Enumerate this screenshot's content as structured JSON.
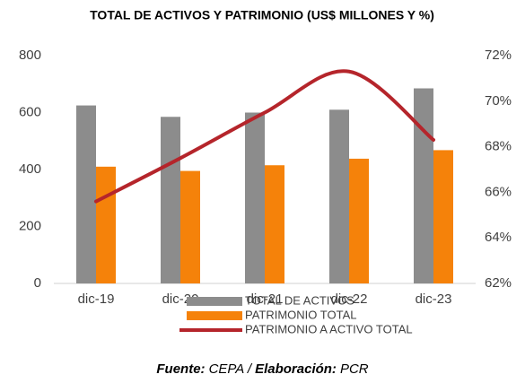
{
  "chart_data": {
    "type": "bar_line",
    "title": "TOTAL DE ACTIVOS Y PATRIMONIO (US$ MILLONES Y %)",
    "categories": [
      "dic-19",
      "dic-20",
      "dic-21",
      "dic-22",
      "dic-23"
    ],
    "series": [
      {
        "name": "TOTAL DE ACTIVOS",
        "color": "#8c8c8c",
        "type": "bar",
        "values": [
          625,
          585,
          600,
          610,
          685
        ]
      },
      {
        "name": "PATRIMONIO TOTAL",
        "color": "#f5820a",
        "type": "bar",
        "values": [
          410,
          395,
          415,
          438,
          468
        ]
      },
      {
        "name": "PATRIMONIO A ACTIVO TOTAL",
        "color": "#b5252b",
        "type": "line",
        "axis": "y2",
        "values": [
          65.6,
          67.5,
          69.5,
          71.3,
          68.3
        ]
      }
    ],
    "ylim": [
      0,
      800
    ],
    "yticks": [
      0,
      200,
      400,
      600,
      800
    ],
    "y2lim": [
      62,
      72
    ],
    "y2ticks": [
      {
        "value": 62,
        "label": "62%"
      },
      {
        "value": 64,
        "label": "64%"
      },
      {
        "value": 66,
        "label": "66%"
      },
      {
        "value": 68,
        "label": "68%"
      },
      {
        "value": 70,
        "label": "70%"
      },
      {
        "value": 72,
        "label": "72%"
      }
    ],
    "grid": false,
    "source": [
      "Fuente:",
      "CEPA /",
      "Elaboración:",
      "PCR"
    ]
  }
}
